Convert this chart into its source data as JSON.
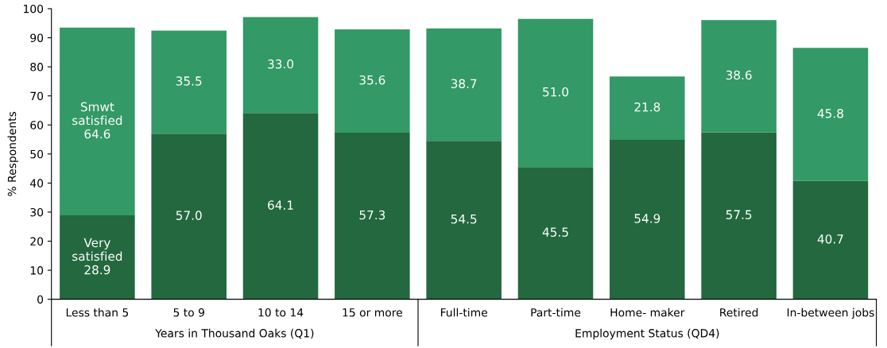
{
  "chart_data": {
    "type": "bar",
    "stacked": true,
    "ylabel": "% Respondents",
    "categories": [
      "Less than 5",
      "5 to 9",
      "10 to 14",
      "15 or more",
      "Full-time",
      "Part-time",
      "Home- maker",
      "Retired",
      "In-between jobs"
    ],
    "series": [
      {
        "name": "Very satisfied",
        "color": "#23683f",
        "values": [
          28.9,
          57.0,
          64.1,
          57.3,
          54.5,
          45.5,
          54.9,
          57.5,
          40.7
        ],
        "value_labels": [
          "28.9",
          "57.0",
          "64.1",
          "57.3",
          "54.5",
          "45.5",
          "54.9",
          "57.5",
          "40.7"
        ]
      },
      {
        "name": "Smwt satisfied",
        "color": "#339966",
        "values": [
          64.6,
          35.5,
          33.0,
          35.6,
          38.7,
          51.0,
          21.8,
          38.6,
          45.8
        ],
        "value_labels": [
          "64.6",
          "35.5",
          "33.0",
          "35.6",
          "38.7",
          "51.0",
          "21.8",
          "38.6",
          "45.8"
        ]
      }
    ],
    "ylim": [
      0,
      100
    ],
    "yticks": [
      0,
      10,
      20,
      30,
      40,
      50,
      60,
      70,
      80,
      90,
      100
    ],
    "grid": false,
    "legend": false,
    "annotations": [
      "Years in Thousand Oaks (Q1)",
      "Employment Status (QD4)"
    ]
  }
}
